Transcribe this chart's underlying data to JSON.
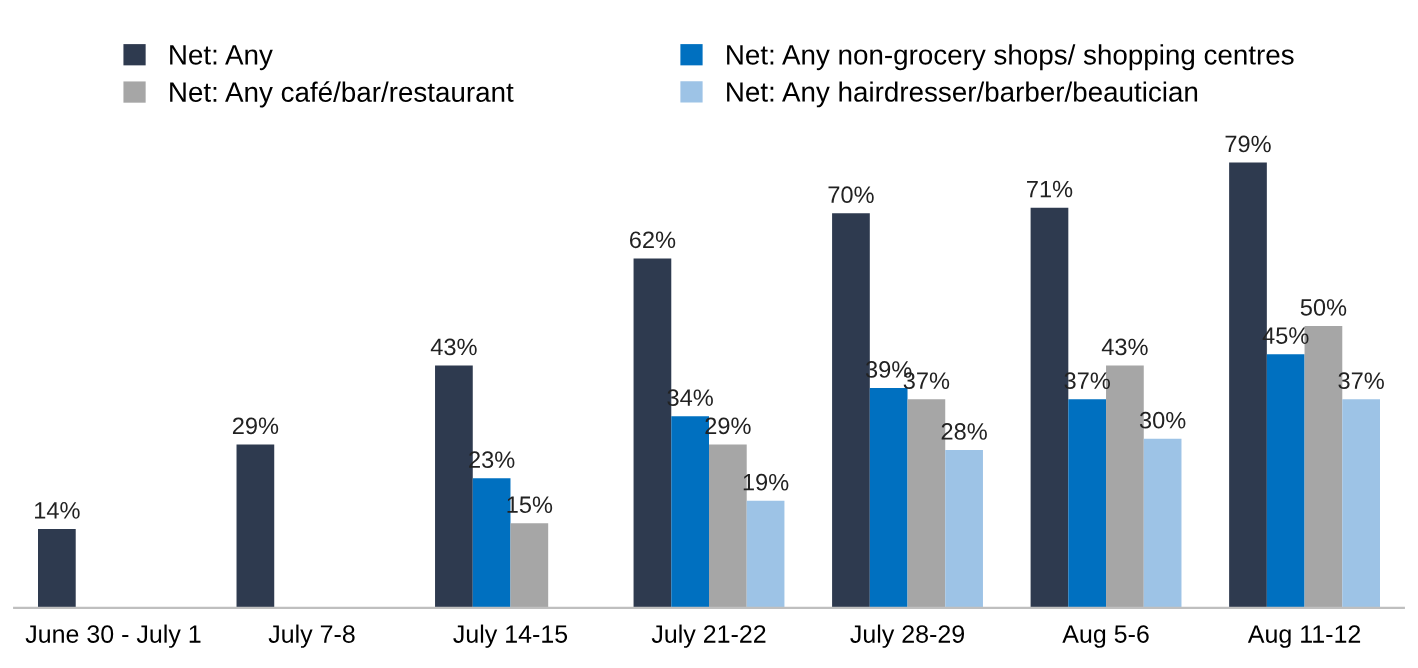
{
  "chart_data": {
    "type": "bar",
    "categories": [
      "June 30 - July 1",
      "July 7-8",
      "July 14-15",
      "July 21-22",
      "July 28-29",
      "Aug 5-6",
      "Aug 11-12"
    ],
    "series": [
      {
        "name": "Net: Any",
        "color": "#2e3a4f",
        "values": [
          14,
          29,
          43,
          62,
          70,
          71,
          79
        ],
        "value_labels": [
          "14%",
          "29%",
          "43%",
          "62%",
          "70%",
          "71%",
          "79%"
        ]
      },
      {
        "name": "Net: Any non-grocery shops/ shopping centres",
        "color": "#0070c0",
        "values": [
          null,
          null,
          23,
          34,
          39,
          37,
          45
        ],
        "value_labels": [
          null,
          null,
          "23%",
          "34%",
          "39%",
          "37%",
          "45%"
        ]
      },
      {
        "name": "Net: Any café/bar/restaurant",
        "color": "#a6a6a6",
        "values": [
          null,
          null,
          15,
          29,
          37,
          43,
          50
        ],
        "value_labels": [
          null,
          null,
          "15%",
          "29%",
          "37%",
          "43%",
          "50%"
        ]
      },
      {
        "name": "Net: Any hairdresser/barber/beautician",
        "color": "#9dc3e6",
        "values": [
          null,
          null,
          null,
          19,
          28,
          30,
          37
        ],
        "value_labels": [
          null,
          null,
          null,
          "19%",
          "28%",
          "30%",
          "37%"
        ]
      }
    ],
    "legend": "top",
    "grid": false,
    "tick_labels": "x"
  }
}
